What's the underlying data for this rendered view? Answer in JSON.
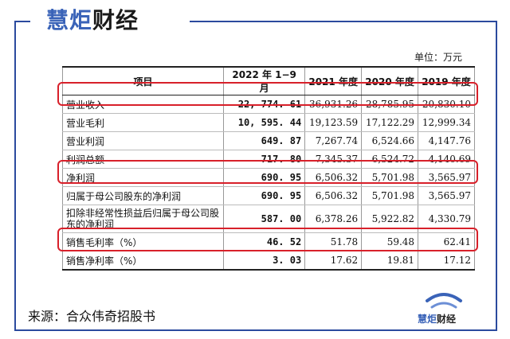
{
  "brand": {
    "part1": "慧炬",
    "part2": "财经"
  },
  "unit_label": "单位：万元",
  "table": {
    "headers": [
      "项目",
      "2022 年 1−9 月",
      "2021 年度",
      "2020 年度",
      "2019 年度"
    ],
    "rows": [
      {
        "label": "营业收入",
        "values": [
          "22, 774. 61",
          "36,931.26",
          "28,785.95",
          "20,830.10"
        ],
        "highlighted": true
      },
      {
        "label": "营业毛利",
        "values": [
          "10, 595. 44",
          "19,123.59",
          "17,122.29",
          "12,999.34"
        ],
        "highlighted": false
      },
      {
        "label": "营业利润",
        "values": [
          "649. 87",
          "7,267.74",
          "6,524.66",
          "4,147.76"
        ],
        "highlighted": false
      },
      {
        "label": "利润总额",
        "values": [
          "717. 80",
          "7,345.37",
          "6,524.72",
          "4,140.69"
        ],
        "highlighted": false
      },
      {
        "label": "净利润",
        "values": [
          "690. 95",
          "6,506.32",
          "5,701.98",
          "3,565.97"
        ],
        "highlighted": true
      },
      {
        "label": "归属于母公司股东的净利润",
        "values": [
          "690. 95",
          "6,506.32",
          "5,701.98",
          "3,565.97"
        ],
        "highlighted": false
      },
      {
        "label": "扣除非经常性损益后归属于母公司股东的净利润",
        "values": [
          "587. 00",
          "6,378.26",
          "5,922.82",
          "4,330.79"
        ],
        "highlighted": false
      },
      {
        "label": "销售毛利率（%）",
        "values": [
          "46. 52",
          "51.78",
          "59.48",
          "62.41"
        ],
        "highlighted": true
      },
      {
        "label": "销售净利率（%）",
        "values": [
          "3. 03",
          "17.62",
          "19.81",
          "17.12"
        ],
        "highlighted": false
      }
    ]
  },
  "source": "来源：合众伟奇招股书",
  "logo": {
    "icon": "wave-logo-icon",
    "part1": "慧炬",
    "part2": "财经"
  },
  "colors": {
    "frame": "#2b4a9e",
    "brand": "#3a63b8",
    "highlight": "#d8202a"
  }
}
